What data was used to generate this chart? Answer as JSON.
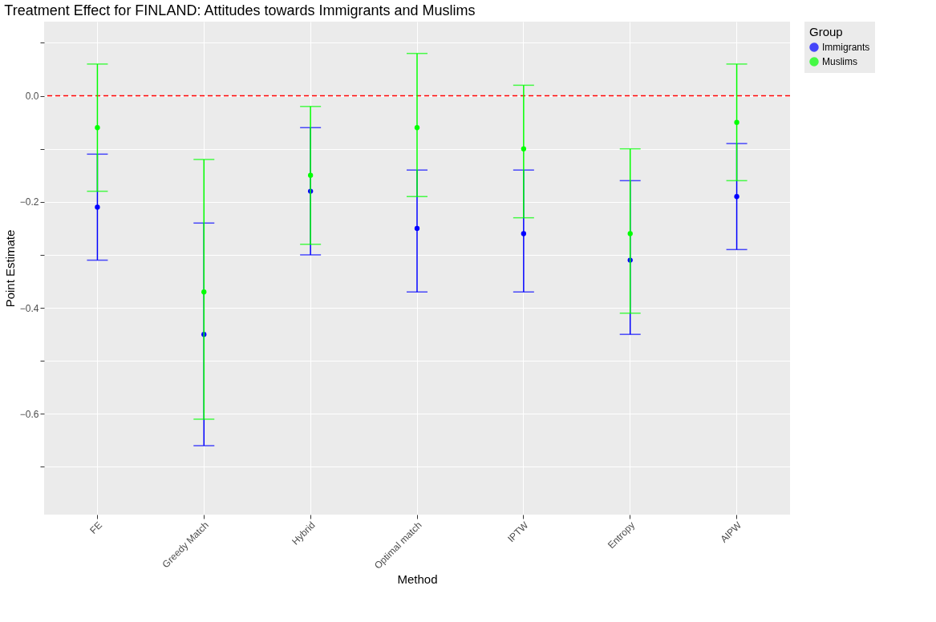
{
  "chart_data": {
    "type": "scatter",
    "title": "Treatment Effect for FINLAND: Attitudes towards Immigrants and Muslims",
    "xlabel": "Method",
    "ylabel": "Point Estimate",
    "legend_title": "Group",
    "legend": "right",
    "grid": true,
    "marker": "circle",
    "categories": [
      "FE",
      "Greedy Match",
      "Hybrid",
      "Optimal match",
      "IPTW",
      "Entropy",
      "AIPW"
    ],
    "ylim": [
      -0.79,
      0.14
    ],
    "yticks": [
      {
        "value": -0.7,
        "label": null
      },
      {
        "value": -0.6,
        "label": "−0.6"
      },
      {
        "value": -0.5,
        "label": null
      },
      {
        "value": -0.4,
        "label": "−0.4"
      },
      {
        "value": -0.3,
        "label": null
      },
      {
        "value": -0.2,
        "label": "−0.2"
      },
      {
        "value": -0.1,
        "label": null
      },
      {
        "value": 0,
        "label": "0.0"
      },
      {
        "value": 0.1,
        "label": null
      }
    ],
    "series": [
      {
        "name": "Immigrants",
        "color": "#0000ff",
        "values": [
          -0.21,
          -0.45,
          -0.18,
          -0.25,
          -0.26,
          -0.31,
          -0.19
        ],
        "errors": [
          [
            -0.31,
            -0.11
          ],
          [
            -0.66,
            -0.24
          ],
          [
            -0.3,
            -0.06
          ],
          [
            -0.37,
            -0.14
          ],
          [
            -0.37,
            -0.14
          ],
          [
            -0.45,
            -0.16
          ],
          [
            -0.29,
            -0.09
          ]
        ]
      },
      {
        "name": "Muslims",
        "color": "#00ff00",
        "values": [
          -0.06,
          -0.37,
          -0.15,
          -0.06,
          -0.1,
          -0.26,
          -0.05
        ],
        "errors": [
          [
            -0.18,
            0.06
          ],
          [
            -0.61,
            -0.12
          ],
          [
            -0.28,
            -0.02
          ],
          [
            -0.19,
            0.08
          ],
          [
            -0.23,
            0.02
          ],
          [
            -0.41,
            -0.1
          ],
          [
            -0.16,
            0.06
          ]
        ]
      }
    ],
    "ref_lines": [
      {
        "axis": "y",
        "value": 0,
        "color": "#ff0000",
        "line_style": "dashed"
      }
    ]
  }
}
